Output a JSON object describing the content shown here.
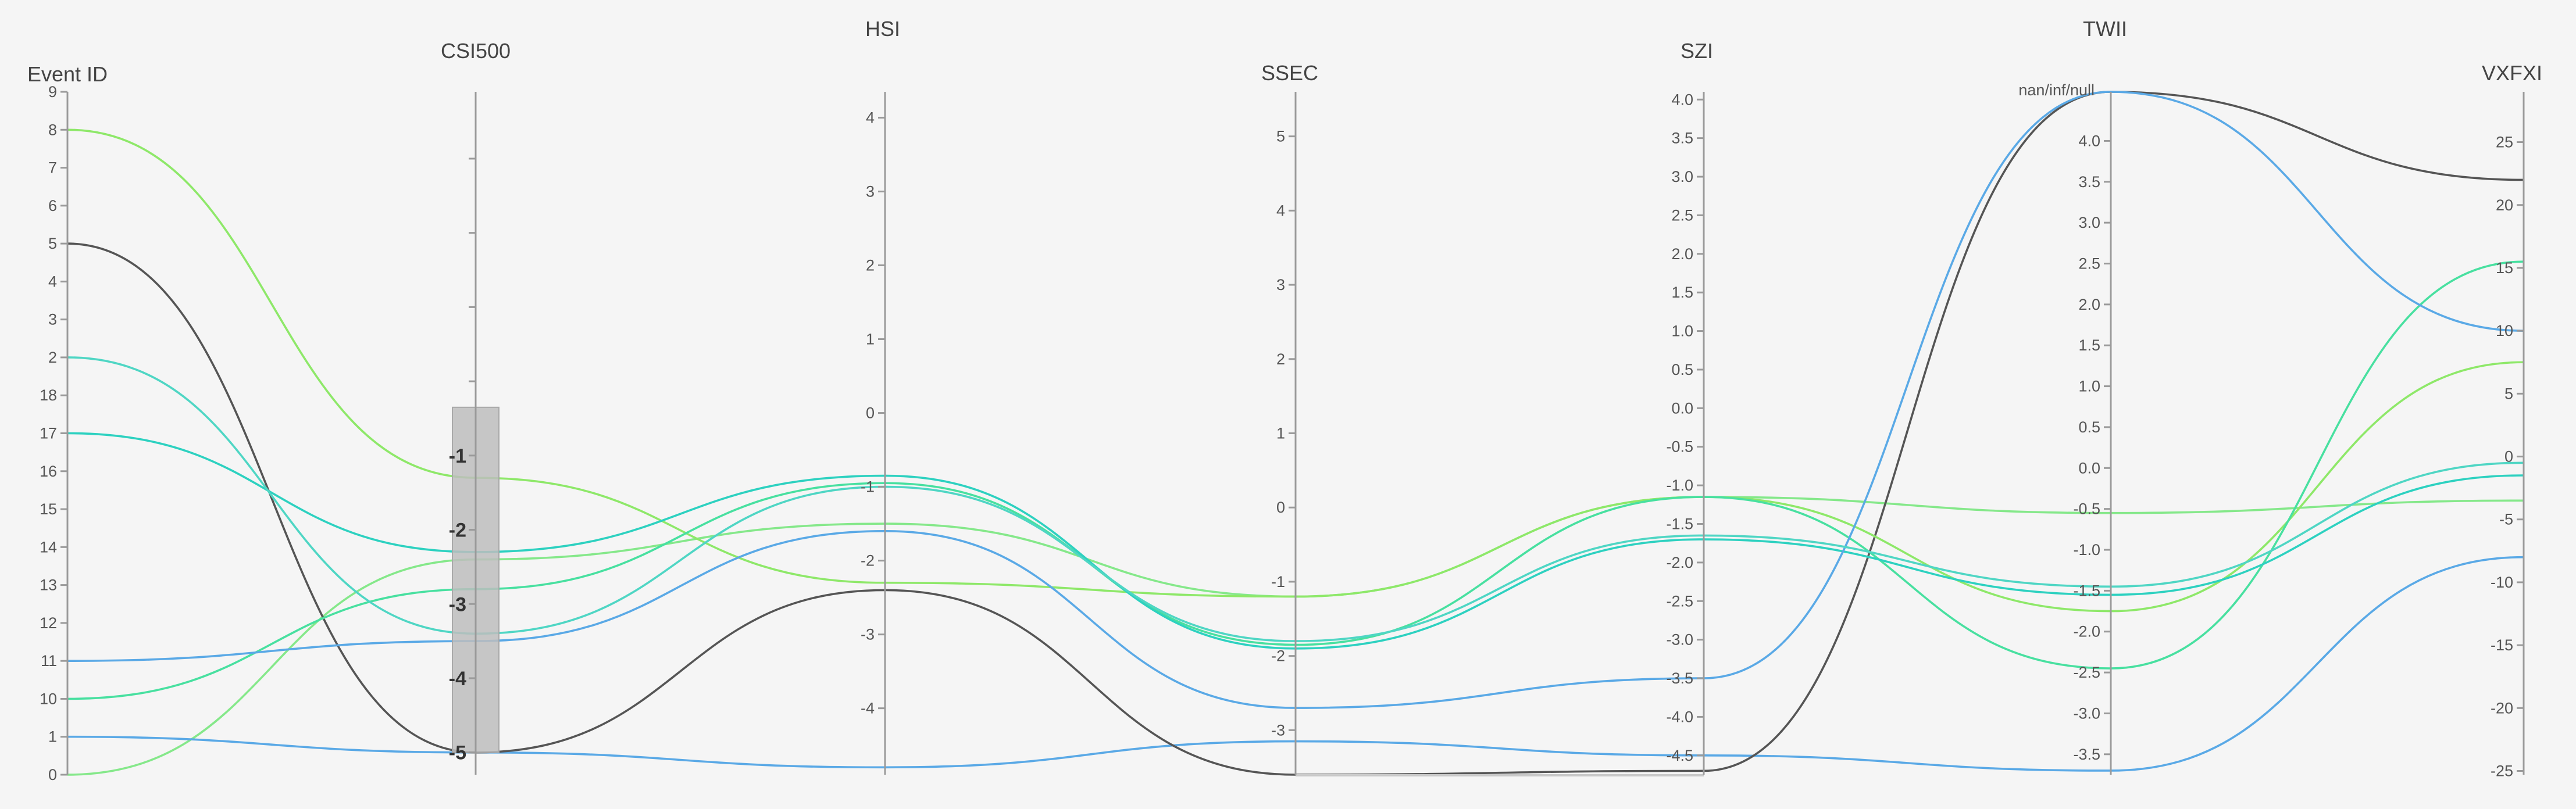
{
  "chart_data": {
    "type": "parallel-coordinates",
    "axes": [
      {
        "key": "event_id",
        "title": "Event ID",
        "ticks": [
          {
            "label": "0"
          },
          {
            "label": "1"
          },
          {
            "label": "10"
          },
          {
            "label": "11"
          },
          {
            "label": "12"
          },
          {
            "label": "13"
          },
          {
            "label": "14"
          },
          {
            "label": "15"
          },
          {
            "label": "16"
          },
          {
            "label": "17"
          },
          {
            "label": "18"
          },
          {
            "label": "2"
          },
          {
            "label": "3"
          },
          {
            "label": "4"
          },
          {
            "label": "5"
          },
          {
            "label": "6"
          },
          {
            "label": "7"
          },
          {
            "label": "8"
          },
          {
            "label": "9"
          }
        ]
      },
      {
        "key": "csi500",
        "title": "CSI500",
        "range": [
          -5.3,
          3.9
        ],
        "ticks": [
          {
            "value": -5,
            "label": "-5",
            "bold": true
          },
          {
            "value": -4,
            "label": "-4",
            "bold": true
          },
          {
            "value": -3,
            "label": "-3",
            "bold": true
          },
          {
            "value": -2,
            "label": "-2",
            "bold": true
          },
          {
            "value": -1,
            "label": "-1",
            "bold": true
          },
          {
            "value": 0,
            "label": ""
          },
          {
            "value": 1,
            "label": ""
          },
          {
            "value": 2,
            "label": ""
          },
          {
            "value": 3,
            "label": ""
          }
        ],
        "brush": [
          -5.0,
          -0.35
        ]
      },
      {
        "key": "hsi",
        "title": "HSI",
        "range": [
          -4.9,
          4.35
        ],
        "ticks": [
          {
            "value": -4,
            "label": "-4"
          },
          {
            "value": -3,
            "label": "-3"
          },
          {
            "value": -2,
            "label": "-2"
          },
          {
            "value": -1,
            "label": "-1"
          },
          {
            "value": 0,
            "label": "0"
          },
          {
            "value": 1,
            "label": "1"
          },
          {
            "value": 2,
            "label": "2"
          },
          {
            "value": 3,
            "label": "3"
          },
          {
            "value": 4,
            "label": "4"
          }
        ]
      },
      {
        "key": "ssec",
        "title": "SSEC",
        "range": [
          -3.6,
          5.6
        ],
        "ticks": [
          {
            "value": -3,
            "label": "-3"
          },
          {
            "value": -2,
            "label": "-2"
          },
          {
            "value": -1,
            "label": "-1"
          },
          {
            "value": 0,
            "label": "0"
          },
          {
            "value": 1,
            "label": "1"
          },
          {
            "value": 2,
            "label": "2"
          },
          {
            "value": 3,
            "label": "3"
          },
          {
            "value": 4,
            "label": "4"
          },
          {
            "value": 5,
            "label": "5"
          }
        ]
      },
      {
        "key": "szi",
        "title": "SZI",
        "range": [
          -4.75,
          4.1
        ],
        "ticks": [
          {
            "value": -4.5,
            "label": "-4.5"
          },
          {
            "value": -4.0,
            "label": "-4.0"
          },
          {
            "value": -3.5,
            "label": "-3.5"
          },
          {
            "value": -3.0,
            "label": "-3.0"
          },
          {
            "value": -2.5,
            "label": "-2.5"
          },
          {
            "value": -2.0,
            "label": "-2.0"
          },
          {
            "value": -1.5,
            "label": "-1.5"
          },
          {
            "value": -1.0,
            "label": "-1.0"
          },
          {
            "value": -0.5,
            "label": "-0.5"
          },
          {
            "value": 0.0,
            "label": "0.0"
          },
          {
            "value": 0.5,
            "label": "0.5"
          },
          {
            "value": 1.0,
            "label": "1.0"
          },
          {
            "value": 1.5,
            "label": "1.5"
          },
          {
            "value": 2.0,
            "label": "2.0"
          },
          {
            "value": 2.5,
            "label": "2.5"
          },
          {
            "value": 3.0,
            "label": "3.0"
          },
          {
            "value": 3.5,
            "label": "3.5"
          },
          {
            "value": 4.0,
            "label": "4.0"
          }
        ]
      },
      {
        "key": "twii",
        "title": "TWII",
        "range": [
          -3.75,
          4.6
        ],
        "null_label": "nan/inf/null",
        "ticks": [
          {
            "value": -3.5,
            "label": "-3.5"
          },
          {
            "value": -3.0,
            "label": "-3.0"
          },
          {
            "value": -2.5,
            "label": "-2.5"
          },
          {
            "value": -2.0,
            "label": "-2.0"
          },
          {
            "value": -1.5,
            "label": "-1.5"
          },
          {
            "value": -1.0,
            "label": "-1.0"
          },
          {
            "value": -0.5,
            "label": "-0.5"
          },
          {
            "value": 0.0,
            "label": "0.0"
          },
          {
            "value": 0.5,
            "label": "0.5"
          },
          {
            "value": 1.0,
            "label": "1.0"
          },
          {
            "value": 1.5,
            "label": "1.5"
          },
          {
            "value": 2.0,
            "label": "2.0"
          },
          {
            "value": 2.5,
            "label": "2.5"
          },
          {
            "value": 3.0,
            "label": "3.0"
          },
          {
            "value": 3.5,
            "label": "3.5"
          },
          {
            "value": 4.0,
            "label": "4.0"
          }
        ]
      },
      {
        "key": "vxfxi",
        "title": "VXFXI",
        "range": [
          -25.3,
          29.0
        ],
        "ticks": [
          {
            "value": -25,
            "label": "-25"
          },
          {
            "value": -20,
            "label": "-20"
          },
          {
            "value": -15,
            "label": "-15"
          },
          {
            "value": -10,
            "label": "-10"
          },
          {
            "value": -5,
            "label": "-5"
          },
          {
            "value": 0,
            "label": "0"
          },
          {
            "value": 5,
            "label": "5"
          },
          {
            "value": 10,
            "label": "10"
          },
          {
            "value": 15,
            "label": "15"
          },
          {
            "value": 20,
            "label": "20"
          },
          {
            "value": 25,
            "label": "25"
          }
        ]
      }
    ],
    "records": [
      {
        "event_id": "0",
        "csi500": -2.4,
        "hsi": -1.5,
        "ssec": -1.2,
        "szi": -1.15,
        "twii": -0.55,
        "vxfxi": -3.5,
        "color": "#85e88a"
      },
      {
        "event_id": "1",
        "csi500": -5.0,
        "hsi": -4.8,
        "ssec": -3.15,
        "szi": -4.5,
        "twii": -3.7,
        "vxfxi": -8.0,
        "color": "#5aa9e6"
      },
      {
        "event_id": "5",
        "csi500": -5.0,
        "hsi": -2.4,
        "ssec": -3.6,
        "szi": -4.7,
        "twii": null,
        "vxfxi": 22.0,
        "color": "#555555"
      },
      {
        "event_id": "8",
        "csi500": -1.3,
        "hsi": -2.3,
        "ssec": -1.2,
        "szi": -1.15,
        "twii": -1.75,
        "vxfxi": 7.5,
        "color": "#8ee869"
      },
      {
        "event_id": "10",
        "csi500": -2.8,
        "hsi": -0.95,
        "ssec": -1.85,
        "szi": -1.15,
        "twii": -2.45,
        "vxfxi": 15.5,
        "color": "#48e0a0"
      },
      {
        "event_id": "17",
        "csi500": -2.3,
        "hsi": -0.85,
        "ssec": -1.9,
        "szi": -1.7,
        "twii": -1.55,
        "vxfxi": -1.5,
        "color": "#2dd1c0"
      },
      {
        "event_id": "11",
        "csi500": -3.5,
        "hsi": -1.6,
        "ssec": -2.7,
        "szi": -3.5,
        "twii": null,
        "vxfxi": 10.0,
        "color": "#5aa9e6"
      },
      {
        "event_id": "2",
        "csi500": -3.4,
        "hsi": -1.0,
        "ssec": -1.8,
        "szi": -1.65,
        "twii": -1.45,
        "vxfxi": -0.5,
        "color": "#4fd6c4"
      }
    ]
  }
}
